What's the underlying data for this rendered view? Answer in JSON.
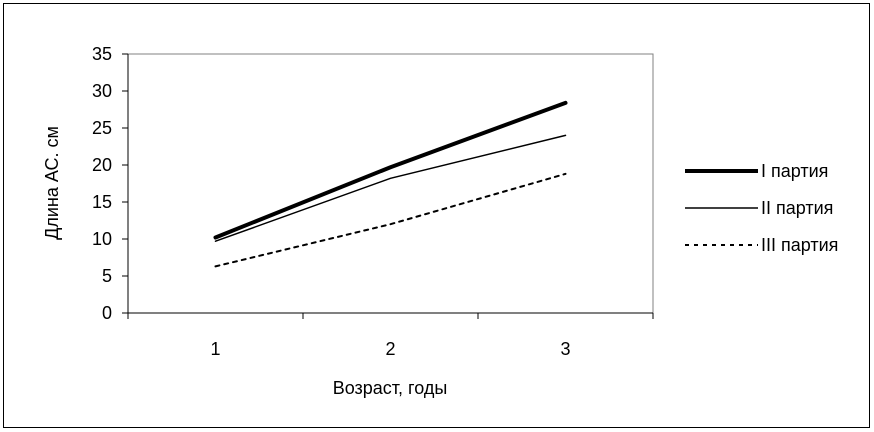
{
  "chart_data": {
    "type": "line",
    "title": "",
    "xlabel": "Возраст, годы",
    "ylabel": "Длина АС. см",
    "categories": [
      "1",
      "2",
      "3"
    ],
    "ylim": [
      0,
      35
    ],
    "yticks": [
      "0",
      "5",
      "10",
      "15",
      "20",
      "25",
      "30",
      "35"
    ],
    "grid": false,
    "legend_position": "right",
    "series": [
      {
        "name": "I партия",
        "values": [
          10.2,
          19.7,
          28.4
        ],
        "color": "#000000",
        "style": "thick-solid"
      },
      {
        "name": "II партия",
        "values": [
          9.7,
          18.2,
          24.0
        ],
        "color": "#000000",
        "style": "thin-solid"
      },
      {
        "name": "III партия",
        "values": [
          6.3,
          12.0,
          18.8
        ],
        "color": "#000000",
        "style": "dotted"
      }
    ]
  }
}
